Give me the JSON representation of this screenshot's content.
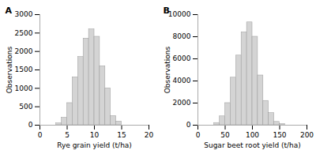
{
  "chart_data": [
    {
      "type": "histogram",
      "title": "A",
      "xlabel": "Rye grain yield (t/ha)",
      "ylabel": "Observations",
      "bins": [
        3,
        4,
        5,
        6,
        7,
        8,
        9,
        10,
        11,
        12,
        13,
        14,
        15
      ],
      "values": [
        50,
        200,
        600,
        1300,
        1850,
        2350,
        2600,
        2400,
        1600,
        1000,
        250,
        100
      ],
      "color": "#d4d4d4",
      "xlim": [
        0,
        20
      ],
      "xticks": [
        0,
        5,
        10,
        15,
        20
      ],
      "ylim": [
        0,
        3000
      ],
      "yticks": [
        0,
        500,
        1000,
        1500,
        2000,
        2500,
        3000
      ],
      "grid": false
    },
    {
      "type": "histogram",
      "title": "B",
      "xlabel": "Sugar beet root yield (t/ha)",
      "ylabel": "Observations",
      "bins": [
        30,
        40,
        50,
        60,
        70,
        80,
        90,
        100,
        110,
        120,
        130,
        140,
        150,
        160
      ],
      "values": [
        200,
        800,
        2000,
        4300,
        6300,
        8400,
        9300,
        8000,
        4500,
        2200,
        1100,
        300,
        100
      ],
      "color": "#d4d4d4",
      "xlim": [
        0,
        200
      ],
      "xticks": [
        0,
        50,
        100,
        150,
        200
      ],
      "ylim": [
        0,
        10000
      ],
      "yticks": [
        0,
        2000,
        4000,
        6000,
        8000,
        10000
      ],
      "grid": false
    }
  ]
}
